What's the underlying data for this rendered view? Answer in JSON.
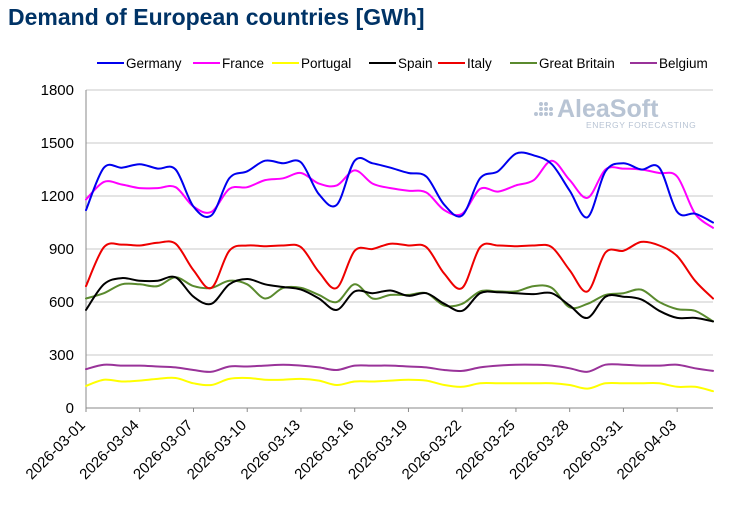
{
  "chart_data": {
    "type": "line",
    "title": "Demand of European countries [GWh]",
    "xlabel": "",
    "ylabel": "",
    "ylim": [
      0,
      1800
    ],
    "yticks": [
      0,
      300,
      600,
      900,
      1200,
      1500,
      1800
    ],
    "grid": true,
    "legend_position": "top",
    "x_tick_labels": [
      "2026-03-01",
      "2026-03-04",
      "2026-03-07",
      "2026-03-10",
      "2026-03-13",
      "2026-03-16",
      "2026-03-19",
      "2026-03-22",
      "2026-03-25",
      "2026-03-28",
      "2026-03-31",
      "2026-04-03"
    ],
    "x": [
      "2026-03-01",
      "2026-03-02",
      "2026-03-03",
      "2026-03-04",
      "2026-03-05",
      "2026-03-06",
      "2026-03-07",
      "2026-03-08",
      "2026-03-09",
      "2026-03-10",
      "2026-03-11",
      "2026-03-12",
      "2026-03-13",
      "2026-03-14",
      "2026-03-15",
      "2026-03-16",
      "2026-03-17",
      "2026-03-18",
      "2026-03-19",
      "2026-03-20",
      "2026-03-21",
      "2026-03-22",
      "2026-03-23",
      "2026-03-24",
      "2026-03-25",
      "2026-03-26",
      "2026-03-27",
      "2026-03-28",
      "2026-03-29",
      "2026-03-30",
      "2026-03-31",
      "2026-04-01",
      "2026-04-02",
      "2026-04-03",
      "2026-04-04",
      "2026-04-05"
    ],
    "series": [
      {
        "name": "Germany",
        "color": "#0000ee",
        "values": [
          1120,
          1360,
          1360,
          1380,
          1355,
          1350,
          1140,
          1090,
          1300,
          1340,
          1400,
          1385,
          1390,
          1210,
          1150,
          1400,
          1385,
          1360,
          1330,
          1310,
          1150,
          1090,
          1300,
          1340,
          1440,
          1430,
          1380,
          1230,
          1080,
          1340,
          1385,
          1350,
          1360,
          1110,
          1100,
          1050
        ]
      },
      {
        "name": "France",
        "color": "#ff00ff",
        "values": [
          1180,
          1280,
          1265,
          1245,
          1245,
          1250,
          1140,
          1110,
          1240,
          1250,
          1290,
          1300,
          1330,
          1270,
          1260,
          1345,
          1270,
          1245,
          1230,
          1220,
          1120,
          1100,
          1240,
          1225,
          1260,
          1290,
          1400,
          1290,
          1190,
          1350,
          1355,
          1350,
          1330,
          1310,
          1100,
          1020
        ]
      },
      {
        "name": "Portugal",
        "color": "#ffff00",
        "values": [
          125,
          160,
          150,
          155,
          165,
          170,
          140,
          130,
          165,
          170,
          160,
          160,
          165,
          155,
          130,
          150,
          150,
          155,
          160,
          155,
          130,
          120,
          140,
          140,
          140,
          140,
          140,
          130,
          110,
          140,
          140,
          140,
          140,
          120,
          120,
          95
        ]
      },
      {
        "name": "Spain",
        "color": "#000000",
        "values": [
          555,
          700,
          735,
          720,
          720,
          740,
          630,
          590,
          700,
          730,
          700,
          685,
          670,
          620,
          555,
          660,
          650,
          665,
          635,
          650,
          590,
          550,
          650,
          655,
          650,
          645,
          650,
          580,
          510,
          630,
          630,
          615,
          550,
          510,
          510,
          490
        ]
      },
      {
        "name": "Italy",
        "color": "#ee0000",
        "values": [
          690,
          910,
          925,
          920,
          935,
          930,
          780,
          680,
          890,
          920,
          915,
          920,
          910,
          770,
          680,
          890,
          900,
          930,
          920,
          910,
          760,
          680,
          910,
          920,
          915,
          920,
          910,
          780,
          660,
          880,
          890,
          940,
          920,
          860,
          720,
          620
        ]
      },
      {
        "name": "Great Britain",
        "color": "#5a8a2e",
        "values": [
          620,
          650,
          700,
          700,
          690,
          740,
          690,
          680,
          720,
          700,
          620,
          680,
          680,
          640,
          600,
          700,
          620,
          640,
          640,
          650,
          580,
          590,
          660,
          660,
          660,
          690,
          680,
          570,
          590,
          640,
          650,
          670,
          600,
          560,
          550,
          490
        ]
      },
      {
        "name": "Belgium",
        "color": "#993399",
        "values": [
          220,
          245,
          240,
          240,
          235,
          230,
          215,
          205,
          235,
          235,
          240,
          245,
          240,
          230,
          215,
          240,
          240,
          240,
          235,
          230,
          215,
          210,
          230,
          240,
          245,
          245,
          240,
          225,
          205,
          245,
          245,
          240,
          240,
          245,
          225,
          210
        ]
      }
    ]
  },
  "watermark": {
    "brand": "AleaSoft",
    "tagline": "ENERGY FORECASTING"
  }
}
